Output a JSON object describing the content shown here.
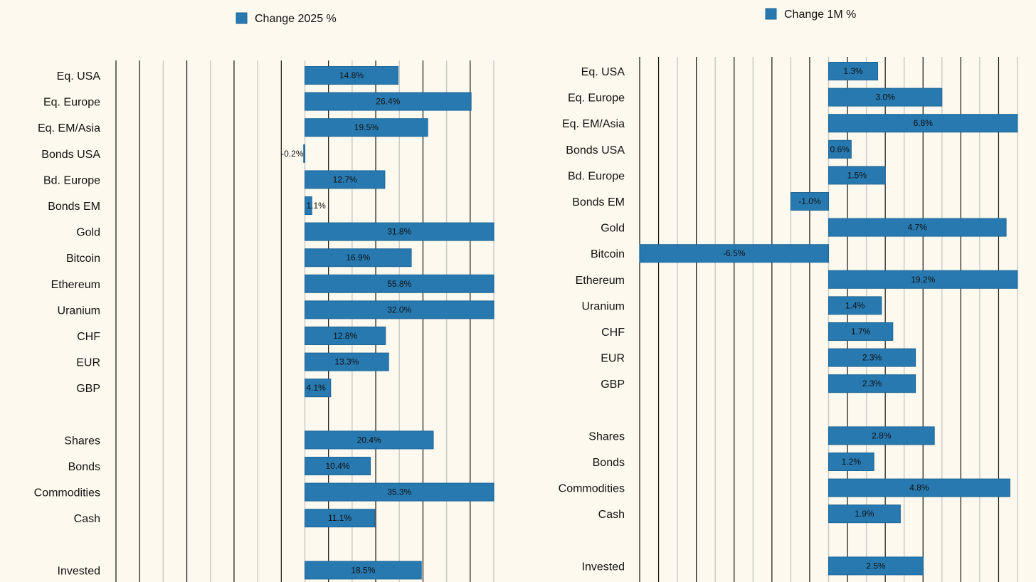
{
  "colors": {
    "bar": "#2779b0",
    "bar_border": "#1d6799",
    "background": "#fdf9ee",
    "grid_dark": "#111111",
    "grid_light": "#c8c8c8"
  },
  "chart_data": [
    {
      "type": "bar",
      "orientation": "horizontal",
      "legend": "Change 2025 %",
      "legend_placement": "top-center",
      "xlim": [
        -30,
        30
      ],
      "grid": true,
      "grid_step": 3.75,
      "categories": [
        "Eq. USA",
        "Eq. Europe",
        "Eq. EM/Asia",
        "Bonds USA",
        "Bd.  Europe",
        "Bonds EM",
        "Gold",
        "Bitcoin",
        "Ethereum",
        "Uranium",
        "CHF",
        "EUR",
        "GBP",
        "Shares",
        "Bonds",
        "Commodities",
        "Cash",
        "Invested"
      ],
      "values": [
        14.8,
        26.4,
        19.5,
        -0.2,
        12.7,
        1.1,
        31.8,
        16.9,
        55.8,
        32.0,
        12.8,
        13.3,
        4.1,
        20.4,
        10.4,
        35.3,
        11.1,
        18.5
      ],
      "value_labels": [
        "14.8%",
        "26.4%",
        "19.5%",
        "-0.2%",
        "12.7%",
        "1.1%",
        "31.8%",
        "16.9%",
        "55.8%",
        "32.0%",
        "12.8%",
        "13.3%",
        "4.1%",
        "20.4%",
        "10.4%",
        "35.3%",
        "11.1%",
        "18.5%"
      ],
      "group_sizes": [
        13,
        4,
        1
      ]
    },
    {
      "type": "bar",
      "orientation": "horizontal",
      "legend": "Change 1M %",
      "legend_placement": "top-right",
      "xlim": [
        -5,
        5
      ],
      "grid": true,
      "grid_step": 0.5,
      "categories": [
        "Eq. USA",
        "Eq. Europe",
        "Eq. EM/Asia",
        "Bonds USA",
        "Bd.  Europe",
        "Bonds EM",
        "Gold",
        "Bitcoin",
        "Ethereum",
        "Uranium",
        "CHF",
        "EUR",
        "GBP",
        "Shares",
        "Bonds",
        "Commodities",
        "Cash",
        "Invested"
      ],
      "values": [
        1.3,
        3.0,
        6.8,
        0.6,
        1.5,
        -1.0,
        4.7,
        -6.5,
        19.2,
        1.4,
        1.7,
        2.3,
        2.3,
        2.8,
        1.2,
        4.8,
        1.9,
        2.5
      ],
      "value_labels": [
        "1.3%",
        "3.0%",
        "6.8%",
        "0.6%",
        "1.5%",
        "-1.0%",
        "4.7%",
        "-6.5%",
        "19.2%",
        "1.4%",
        "1.7%",
        "2.3%",
        "2.3%",
        "2.8%",
        "1.2%",
        "4.8%",
        "1.9%",
        "2.5%"
      ],
      "group_sizes": [
        13,
        4,
        1
      ]
    }
  ]
}
